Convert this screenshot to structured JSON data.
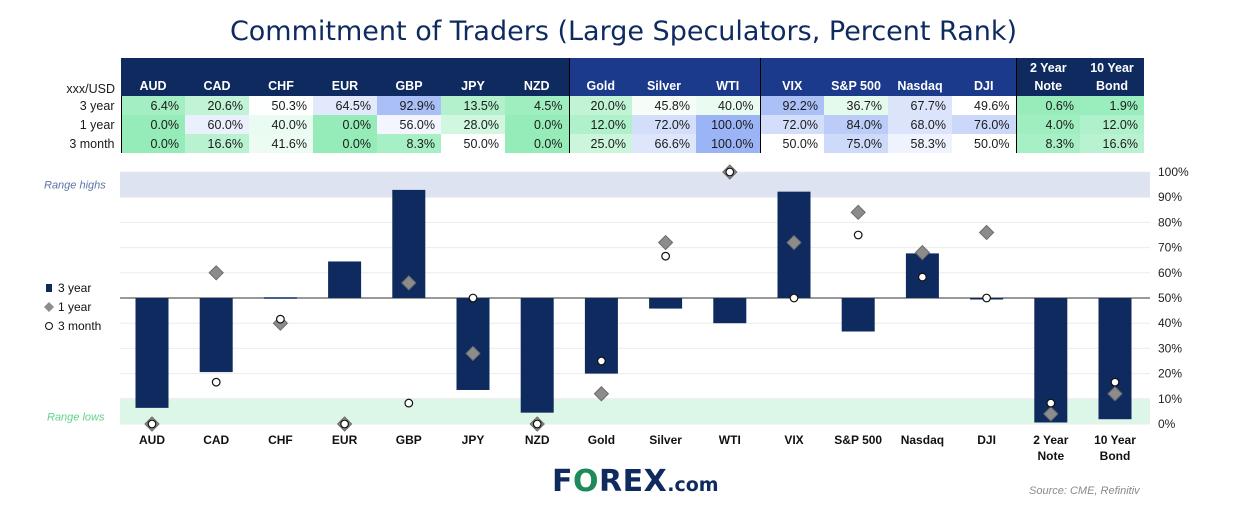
{
  "title": "Commitment of Traders (Large Speculators, Percent Rank)",
  "table": {
    "corner": "xxx/USD",
    "headers": [
      {
        "line1": "",
        "line2": "AUD"
      },
      {
        "line1": "",
        "line2": "CAD"
      },
      {
        "line1": "",
        "line2": "CHF"
      },
      {
        "line1": "",
        "line2": "EUR"
      },
      {
        "line1": "",
        "line2": "GBP"
      },
      {
        "line1": "",
        "line2": "JPY"
      },
      {
        "line1": "",
        "line2": "NZD"
      },
      {
        "line1": "",
        "line2": "Gold"
      },
      {
        "line1": "",
        "line2": "Silver"
      },
      {
        "line1": "",
        "line2": "WTI"
      },
      {
        "line1": "",
        "line2": "VIX"
      },
      {
        "line1": "",
        "line2": "S&P 500"
      },
      {
        "line1": "",
        "line2": "Nasdaq"
      },
      {
        "line1": "",
        "line2": "DJI"
      },
      {
        "line1": "2 Year",
        "line2": "Note"
      },
      {
        "line1": "10 Year",
        "line2": "Bond"
      }
    ],
    "rows": [
      {
        "label": "3 year",
        "cells": [
          "6.4%",
          "20.6%",
          "50.3%",
          "64.5%",
          "92.9%",
          "13.5%",
          "4.5%",
          "20.0%",
          "45.8%",
          "40.0%",
          "92.2%",
          "36.7%",
          "67.7%",
          "49.6%",
          "0.6%",
          "1.9%"
        ]
      },
      {
        "label": "1 year",
        "cells": [
          "0.0%",
          "60.0%",
          "40.0%",
          "0.0%",
          "56.0%",
          "28.0%",
          "0.0%",
          "12.0%",
          "72.0%",
          "100.0%",
          "72.0%",
          "84.0%",
          "68.0%",
          "76.0%",
          "4.0%",
          "12.0%"
        ]
      },
      {
        "label": "3 month",
        "cells": [
          "0.0%",
          "16.6%",
          "41.6%",
          "0.0%",
          "8.3%",
          "50.0%",
          "0.0%",
          "25.0%",
          "66.6%",
          "100.0%",
          "50.0%",
          "75.0%",
          "58.3%",
          "50.0%",
          "8.3%",
          "16.6%"
        ]
      }
    ]
  },
  "chart_data": {
    "type": "bar",
    "categories": [
      "AUD",
      "CAD",
      "CHF",
      "EUR",
      "GBP",
      "JPY",
      "NZD",
      "Gold",
      "Silver",
      "WTI",
      "VIX",
      "S&P 500",
      "Nasdaq",
      "DJI",
      "2 Year\nNote",
      "10 Year\nBond"
    ],
    "baseline": 50,
    "ylim": [
      0,
      100
    ],
    "yticks": [
      "0%",
      "10%",
      "20%",
      "30%",
      "40%",
      "50%",
      "60%",
      "70%",
      "80%",
      "90%",
      "100%"
    ],
    "series": [
      {
        "name": "3 year",
        "type": "bar",
        "values": [
          6.4,
          20.6,
          50.3,
          64.5,
          92.9,
          13.5,
          4.5,
          20.0,
          45.8,
          40.0,
          92.2,
          36.7,
          67.7,
          49.6,
          0.6,
          1.9
        ]
      },
      {
        "name": "1 year",
        "type": "diamond",
        "values": [
          0,
          60,
          40,
          0,
          56,
          28,
          0,
          12,
          72,
          100,
          72,
          84,
          68,
          76,
          4,
          12
        ]
      },
      {
        "name": "3 month",
        "type": "circle",
        "values": [
          0,
          16.6,
          41.6,
          0,
          8.3,
          50,
          0,
          25,
          66.6,
          100,
          50,
          75,
          58.3,
          50,
          8.3,
          16.6
        ]
      }
    ],
    "bands": {
      "high_label": "Range highs",
      "high_range": [
        90,
        100
      ],
      "low_label": "Range lows",
      "low_range": [
        0,
        10
      ]
    },
    "legend": "left",
    "grid": true
  },
  "colors": {
    "navy": "#0e2a5e",
    "diamond": "#8c8c8c",
    "high_band": "#dde3f0",
    "low_band": "#dcf7e7",
    "high_text": "#5d74a6",
    "low_text": "#5fd18d"
  },
  "logo": {
    "text1": "F",
    "text_o": "O",
    "text2": "REX",
    "suffix": ".com"
  },
  "source": "Source: CME, Refinitiv"
}
